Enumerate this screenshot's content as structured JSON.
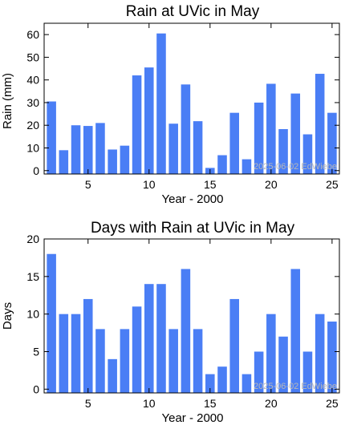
{
  "chart_data": [
    {
      "type": "bar",
      "title": "Rain at UVic in May",
      "xlabel": "Year - 2000",
      "ylabel": "Rain (mm)",
      "x": [
        2,
        3,
        4,
        5,
        6,
        7,
        8,
        9,
        10,
        11,
        12,
        13,
        14,
        15,
        16,
        17,
        18,
        19,
        20,
        21,
        22,
        23,
        24,
        25
      ],
      "values": [
        30.5,
        9,
        20,
        19.7,
        21,
        9.3,
        11,
        42,
        45.5,
        60.5,
        20.7,
        38,
        21.8,
        1.2,
        6.8,
        25.5,
        5,
        30,
        38.3,
        18.3,
        34,
        16,
        42.7,
        25.5
      ],
      "xlim": [
        1.4,
        25.6
      ],
      "ylim": [
        -1.5,
        65
      ],
      "xticks": [
        5,
        10,
        15,
        20,
        25
      ],
      "yticks": [
        0,
        10,
        20,
        30,
        40,
        50,
        60
      ],
      "bar_color": "#4a7ef5",
      "watermark": "2025-06-02 EdWiebe"
    },
    {
      "type": "bar",
      "title": "Days with Rain at UVic in May",
      "xlabel": "Year - 2000",
      "ylabel": "Days",
      "x": [
        2,
        3,
        4,
        5,
        6,
        7,
        8,
        9,
        10,
        11,
        12,
        13,
        14,
        15,
        16,
        17,
        18,
        19,
        20,
        21,
        22,
        23,
        24,
        25
      ],
      "values": [
        18,
        10,
        10,
        12,
        8,
        4,
        8,
        11,
        14,
        14,
        8,
        16,
        8,
        2,
        3,
        12,
        2,
        5,
        10,
        7,
        16,
        5,
        10,
        9
      ],
      "xlim": [
        1.4,
        25.6
      ],
      "ylim": [
        -0.5,
        20
      ],
      "xticks": [
        5,
        10,
        15,
        20,
        25
      ],
      "yticks": [
        0,
        5,
        10,
        15,
        20
      ],
      "bar_color": "#4a7ef5",
      "watermark": "2025-06-02 EdWiebe"
    }
  ]
}
